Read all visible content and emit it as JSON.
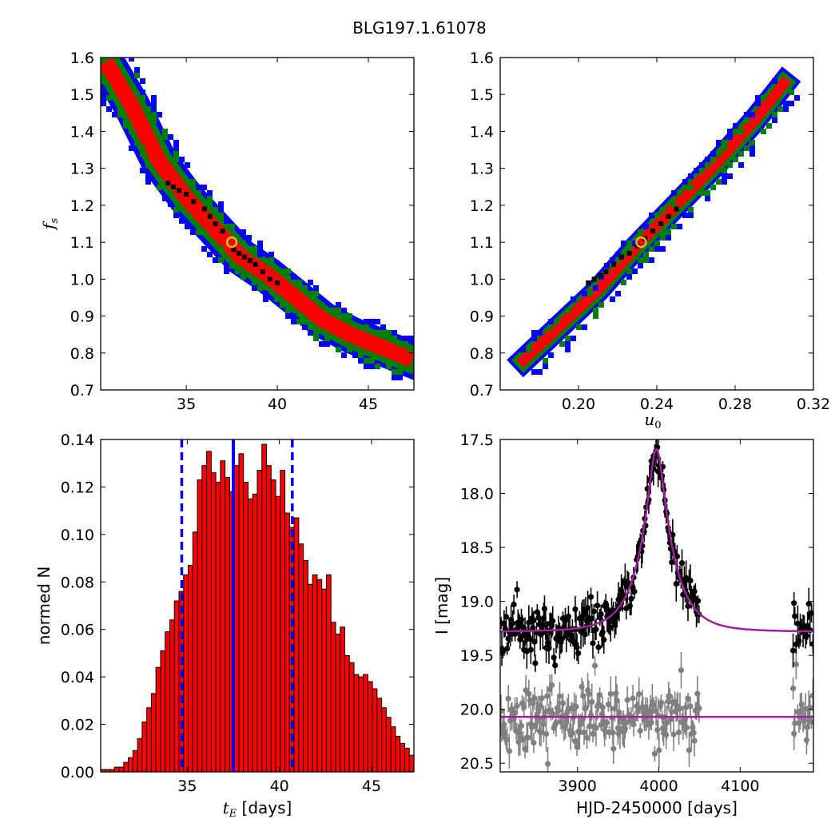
{
  "figure": {
    "title": "BLG197.1.61078"
  },
  "chart_data": [
    {
      "type": "heatmap",
      "panel": "top-left",
      "xlabel": "",
      "ylabel": "f_s",
      "xlim": [
        30.3,
        47.5
      ],
      "ylim": [
        0.7,
        1.6
      ],
      "xticks": [
        "35",
        "40",
        "45"
      ],
      "yticks": [
        "0.7",
        "0.8",
        "0.9",
        "1.0",
        "1.1",
        "1.2",
        "1.3",
        "1.4",
        "1.5",
        "1.6"
      ],
      "contour_colors": {
        "outer": "#0000ff",
        "middle": "#008000",
        "inner": "#ff0000",
        "best_cells": "#000000"
      },
      "band_centerline": [
        [
          30.8,
          1.57
        ],
        [
          32.0,
          1.47
        ],
        [
          33.5,
          1.32
        ],
        [
          35.0,
          1.22
        ],
        [
          36.5,
          1.14
        ],
        [
          38.0,
          1.06
        ],
        [
          39.5,
          1.01
        ],
        [
          41.0,
          0.95
        ],
        [
          42.5,
          0.89
        ],
        [
          44.0,
          0.85
        ],
        [
          45.5,
          0.82
        ],
        [
          47.0,
          0.79
        ]
      ],
      "best_fit_marker": {
        "x": 37.5,
        "y": 1.1
      },
      "best_cells": [
        [
          34.0,
          1.26
        ],
        [
          34.3,
          1.25
        ],
        [
          34.6,
          1.24
        ],
        [
          35.0,
          1.23
        ],
        [
          35.4,
          1.21
        ],
        [
          36.0,
          1.19
        ],
        [
          36.3,
          1.17
        ],
        [
          36.6,
          1.15
        ],
        [
          37.0,
          1.13
        ],
        [
          37.6,
          1.08
        ],
        [
          37.9,
          1.07
        ],
        [
          38.2,
          1.06
        ],
        [
          38.5,
          1.05
        ],
        [
          38.8,
          1.04
        ],
        [
          39.2,
          1.02
        ],
        [
          39.6,
          1.0
        ],
        [
          40.0,
          0.99
        ]
      ]
    },
    {
      "type": "heatmap",
      "panel": "top-right",
      "xlabel": "u_0",
      "ylabel": "",
      "xlim": [
        0.16,
        0.32
      ],
      "ylim": [
        0.7,
        1.6
      ],
      "xticks": [
        "0.20",
        "0.24",
        "0.28",
        "0.32"
      ],
      "yticks": [
        "0.7",
        "0.8",
        "0.9",
        "1.0",
        "1.1",
        "1.2",
        "1.3",
        "1.4",
        "1.5",
        "1.6"
      ],
      "contour_colors": {
        "outer": "#0000ff",
        "middle": "#008000",
        "inner": "#ff0000",
        "best_cells": "#000000"
      },
      "band_centerline": [
        [
          0.172,
          0.78
        ],
        [
          0.19,
          0.87
        ],
        [
          0.21,
          0.97
        ],
        [
          0.23,
          1.09
        ],
        [
          0.25,
          1.2
        ],
        [
          0.27,
          1.31
        ],
        [
          0.29,
          1.43
        ],
        [
          0.305,
          1.53
        ]
      ],
      "best_fit_marker": {
        "x": 0.232,
        "y": 1.1
      },
      "best_cells": [
        [
          0.205,
          0.99
        ],
        [
          0.208,
          1.0
        ],
        [
          0.211,
          1.01
        ],
        [
          0.214,
          1.02
        ],
        [
          0.218,
          1.04
        ],
        [
          0.222,
          1.06
        ],
        [
          0.226,
          1.07
        ],
        [
          0.23,
          1.09
        ],
        [
          0.234,
          1.11
        ],
        [
          0.238,
          1.13
        ],
        [
          0.242,
          1.15
        ],
        [
          0.246,
          1.17
        ],
        [
          0.25,
          1.19
        ]
      ]
    },
    {
      "type": "bar",
      "panel": "bottom-left",
      "xlabel": "t_E",
      "xlabel_suffix": " [days]",
      "ylabel": "normed N",
      "xlim": [
        30.3,
        47.3
      ],
      "ylim": [
        0.0,
        0.14
      ],
      "xticks": [
        "35",
        "40",
        "45"
      ],
      "yticks": [
        "0.00",
        "0.02",
        "0.04",
        "0.06",
        "0.08",
        "0.10",
        "0.12",
        "0.14"
      ],
      "bar_color": "#ff0000",
      "bin_start": 30.3,
      "bin_width": 0.25,
      "values": [
        0.001,
        0.001,
        0.001,
        0.002,
        0.002,
        0.004,
        0.006,
        0.009,
        0.014,
        0.021,
        0.027,
        0.033,
        0.044,
        0.051,
        0.059,
        0.064,
        0.072,
        0.076,
        0.083,
        0.087,
        0.101,
        0.123,
        0.129,
        0.135,
        0.126,
        0.122,
        0.131,
        0.124,
        0.118,
        0.129,
        0.134,
        0.122,
        0.115,
        0.117,
        0.127,
        0.138,
        0.129,
        0.123,
        0.116,
        0.127,
        0.109,
        0.103,
        0.107,
        0.096,
        0.089,
        0.079,
        0.083,
        0.081,
        0.077,
        0.083,
        0.063,
        0.058,
        0.061,
        0.049,
        0.046,
        0.041,
        0.04,
        0.041,
        0.038,
        0.035,
        0.031,
        0.027,
        0.023,
        0.019,
        0.015,
        0.012,
        0.01,
        0.007,
        0.005,
        0.004,
        0.003,
        0.002,
        0.001,
        0.001,
        0.001,
        0.001,
        0.001,
        0.001
      ],
      "median": 37.5,
      "lower_bound": 34.7,
      "upper_bound": 40.7,
      "line_color": "#0000ff"
    },
    {
      "type": "scatter",
      "panel": "bottom-right",
      "xlabel": "HJD-2450000 [days]",
      "ylabel": "I [mag]",
      "xlim": [
        3805,
        4190
      ],
      "ylim": [
        20.58,
        17.5
      ],
      "y_inverted": true,
      "xticks": [
        "3900",
        "4000",
        "4100"
      ],
      "yticks": [
        "17.5",
        "18.0",
        "18.5",
        "19.0",
        "19.5",
        "20.0",
        "20.5"
      ],
      "model_color": "#a020a0",
      "lightcurve_model": {
        "t0": 3997,
        "peak_mag": 17.62,
        "baseline_mag": 19.28,
        "tE": 37.5,
        "u0": 0.232
      },
      "residual_baseline_mag": 20.07,
      "series": [
        {
          "color": "#000000",
          "baseline_mag": 19.28,
          "scatter_mag": 0.12
        },
        {
          "color": "#808080",
          "baseline_mag": 20.07,
          "scatter_mag": 0.14
        }
      ]
    }
  ]
}
